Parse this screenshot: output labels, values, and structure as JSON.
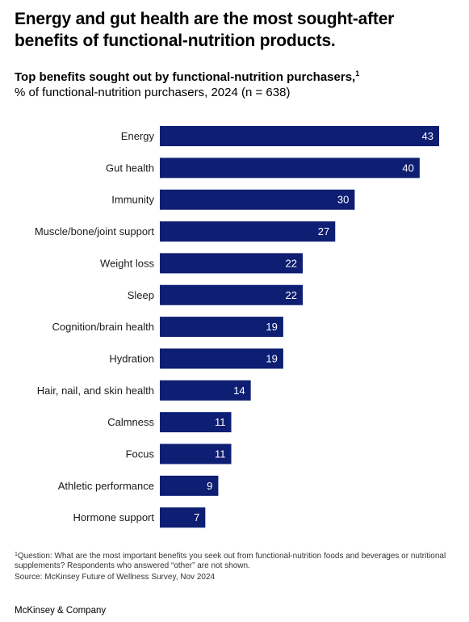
{
  "headline": "Energy and gut health are the most sought-after benefits of functional-nutrition products.",
  "chart_data": {
    "type": "bar",
    "orientation": "horizontal",
    "title": "Top benefits sought out by functional-nutrition purchasers,",
    "title_footnote_marker": "1",
    "subtitle": "% of functional-nutrition purchasers, 2024 (n = 638)",
    "categories": [
      "Energy",
      "Gut health",
      "Immunity",
      "Muscle/bone/joint support",
      "Weight loss",
      "Sleep",
      "Cognition/brain health",
      "Hydration",
      "Hair, nail, and skin health",
      "Calmness",
      "Focus",
      "Athletic performance",
      "Hormone support"
    ],
    "values": [
      43,
      40,
      30,
      27,
      22,
      22,
      19,
      19,
      14,
      11,
      11,
      9,
      7
    ],
    "xlim": [
      0,
      43
    ],
    "bar_color": "#0e1e73",
    "value_label_color": "#ffffff",
    "grid": false,
    "legend": "none"
  },
  "footnote": {
    "marker": "1",
    "text": "Question: What are the most important benefits you seek out from functional-nutrition foods and beverages or nutritional supplements? Respondents who answered “other” are not shown."
  },
  "source": "Source: McKinsey Future of Wellness Survey, Nov 2024",
  "brand": "McKinsey & Company"
}
